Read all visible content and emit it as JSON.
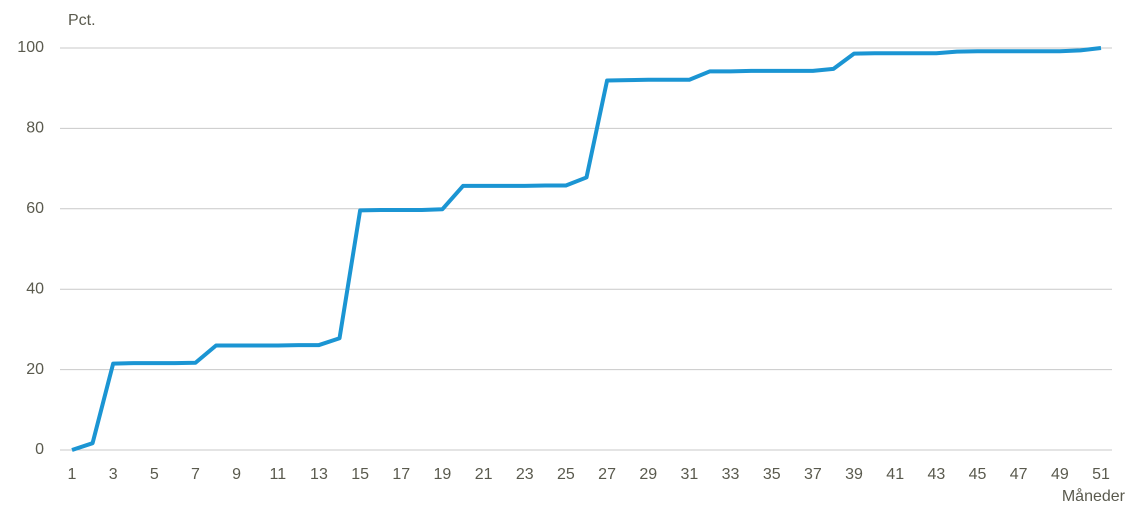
{
  "chart_data": {
    "type": "line",
    "ylabel": "Pct.",
    "xlabel": "Måneder",
    "x": [
      1,
      2,
      3,
      4,
      5,
      6,
      7,
      8,
      9,
      10,
      11,
      12,
      13,
      14,
      15,
      16,
      17,
      18,
      19,
      20,
      21,
      22,
      23,
      24,
      25,
      26,
      27,
      28,
      29,
      30,
      31,
      32,
      33,
      34,
      35,
      36,
      37,
      38,
      39,
      40,
      41,
      42,
      43,
      44,
      45,
      46,
      47,
      48,
      49,
      50,
      51
    ],
    "series": [
      {
        "name": null,
        "color": "#1b95d3",
        "values": [
          0,
          1.7,
          21.5,
          21.6,
          21.6,
          21.6,
          21.7,
          26,
          26,
          26,
          26,
          26.1,
          26.1,
          27.8,
          59.6,
          59.7,
          59.7,
          59.7,
          59.9,
          65.7,
          65.7,
          65.7,
          65.7,
          65.8,
          65.8,
          67.8,
          91.9,
          92,
          92.1,
          92.1,
          92.1,
          94.2,
          94.2,
          94.3,
          94.3,
          94.3,
          94.3,
          94.8,
          98.6,
          98.7,
          98.7,
          98.7,
          98.7,
          99.1,
          99.2,
          99.2,
          99.2,
          99.2,
          99.2,
          99.4,
          100
        ]
      }
    ],
    "xlim": [
      1,
      51
    ],
    "xticks": [
      1,
      3,
      5,
      7,
      9,
      11,
      13,
      15,
      17,
      19,
      21,
      23,
      25,
      27,
      29,
      31,
      33,
      35,
      37,
      39,
      41,
      43,
      45,
      47,
      49,
      51
    ],
    "ylim": [
      0,
      100
    ],
    "yticks": [
      0,
      20,
      40,
      60,
      80,
      100
    ],
    "grid": true
  }
}
